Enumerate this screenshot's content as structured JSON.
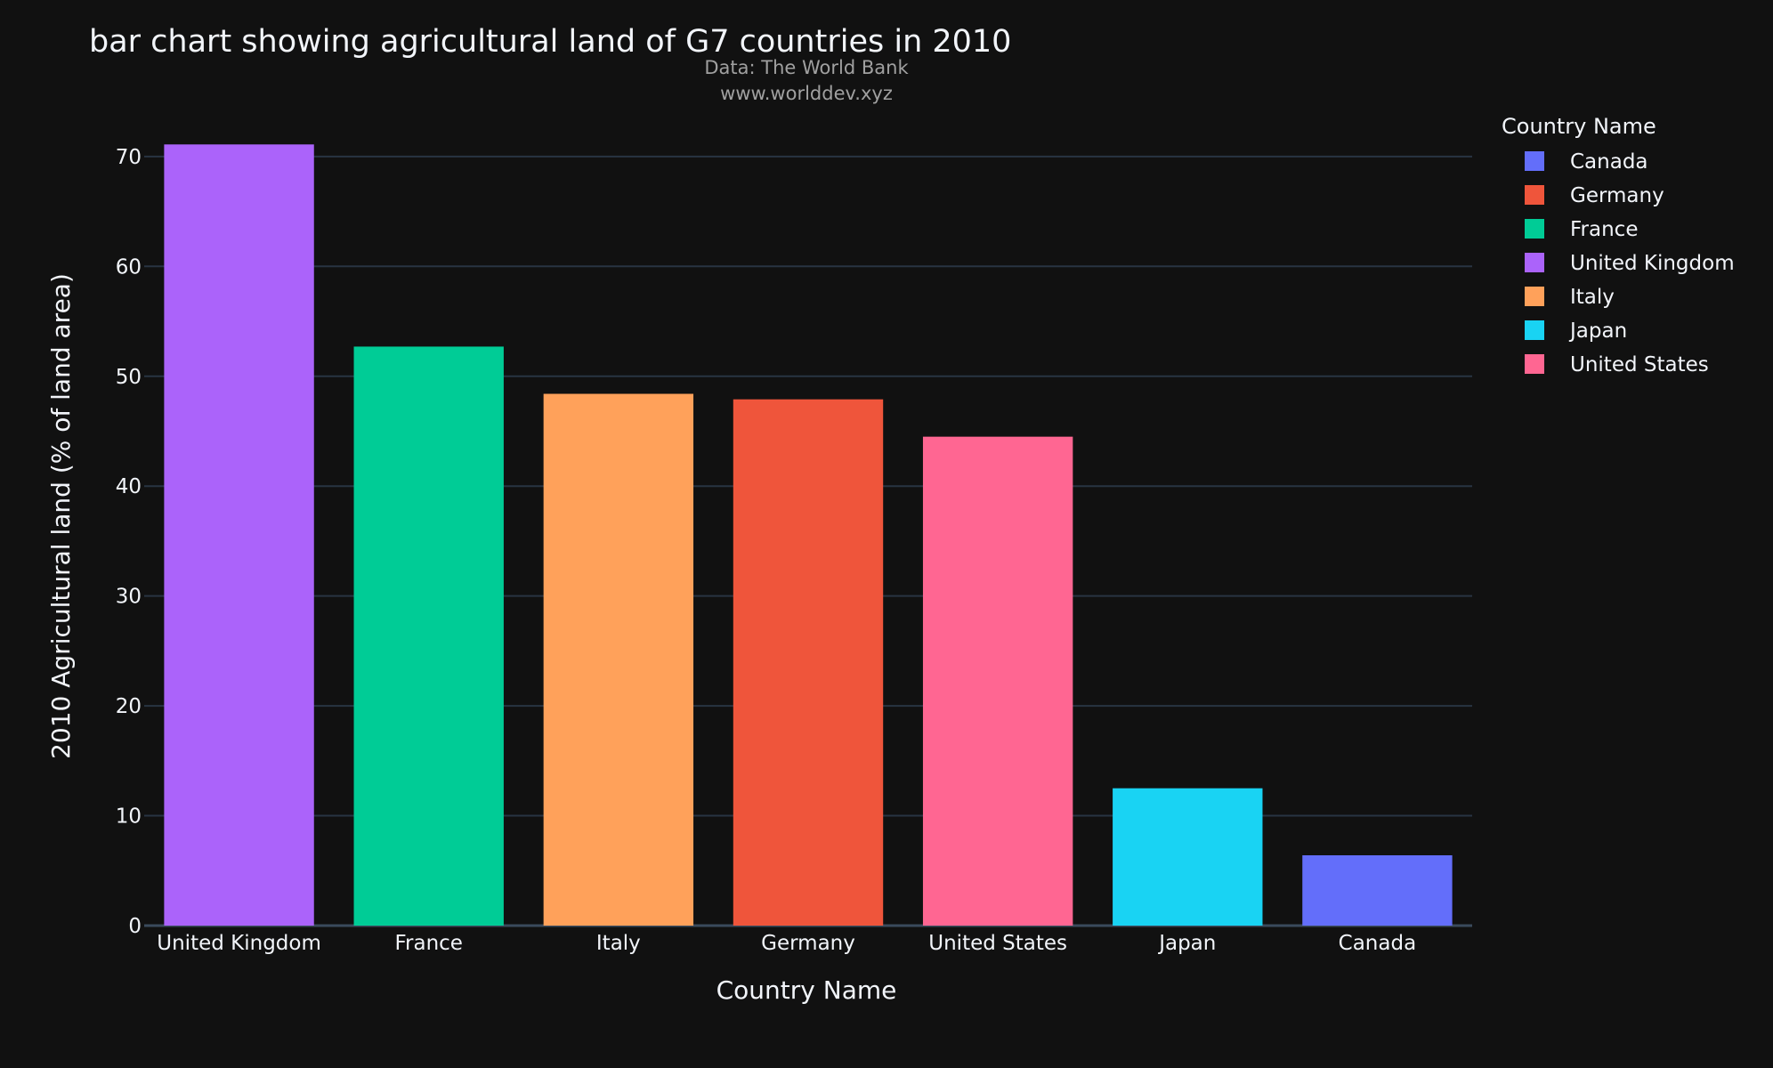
{
  "chart_data": {
    "type": "bar",
    "title": "bar chart showing agricultural land of G7 countries in 2010",
    "subtitle": [
      "Data: The World Bank",
      "www.worlddev.xyz"
    ],
    "xlabel": "Country Name",
    "ylabel": "2010 Agricultural land (% of land area)",
    "ylim": [
      0,
      72.5
    ],
    "yticks": [
      0,
      10,
      20,
      30,
      40,
      50,
      60,
      70
    ],
    "grid": true,
    "legend": {
      "title": "Country Name",
      "placement": "top-right",
      "entries": [
        "Canada",
        "Germany",
        "France",
        "United Kingdom",
        "Italy",
        "Japan",
        "United States"
      ]
    },
    "categories": [
      "United Kingdom",
      "France",
      "Italy",
      "Germany",
      "United States",
      "Japan",
      "Canada"
    ],
    "values": [
      71.1,
      52.7,
      48.4,
      47.9,
      44.5,
      12.5,
      6.4
    ],
    "colors": {
      "Canada": "#636efa",
      "Germany": "#ef553b",
      "France": "#00cc96",
      "United Kingdom": "#ab63fa",
      "Italy": "#ffa15a",
      "Japan": "#19d3f3",
      "United States": "#ff6692"
    },
    "theme": {
      "background": "#111111",
      "grid": "#283442",
      "text": "#f2f5fa",
      "subtext": "#a0a0a0"
    }
  }
}
